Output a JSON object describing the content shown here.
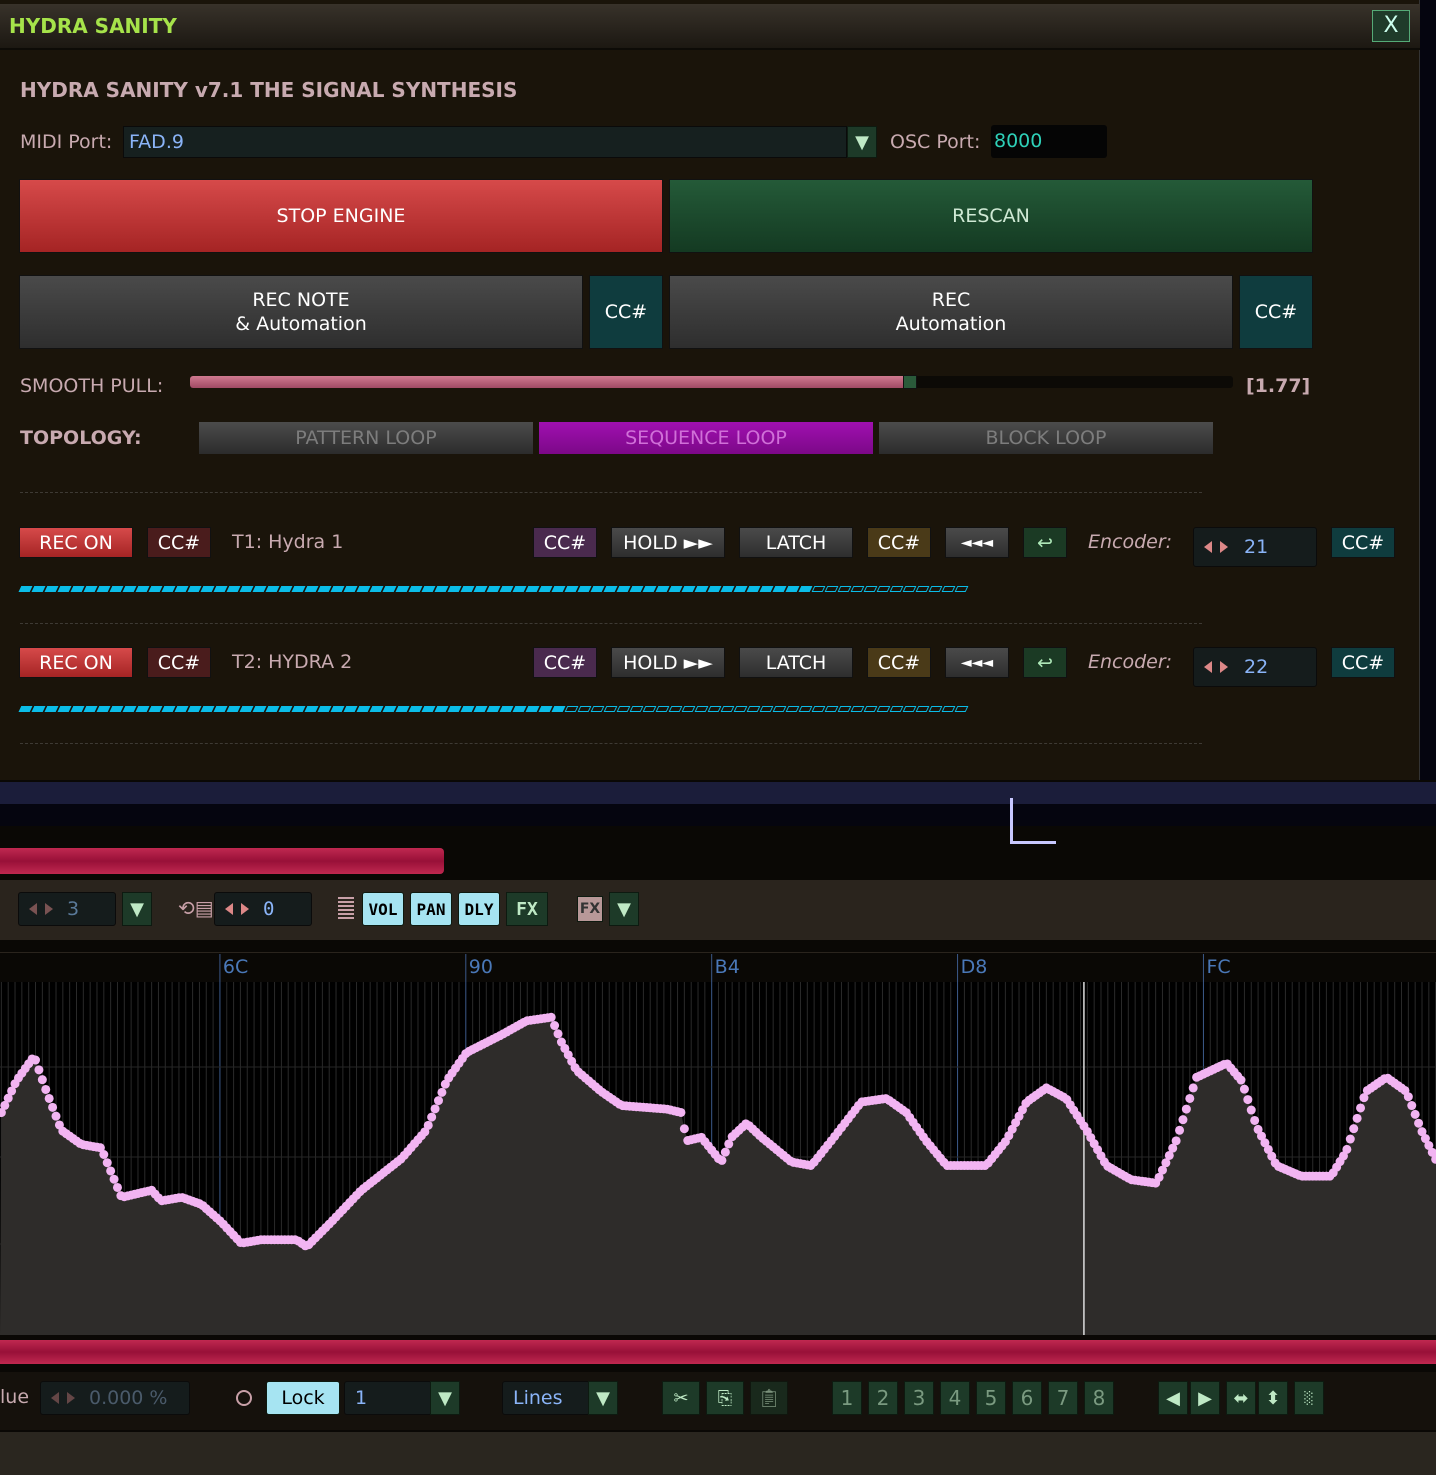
{
  "dialog": {
    "title": "HYDRA SANITY",
    "close_label": "X",
    "heading": "HYDRA SANITY v7.1 THE SIGNAL SYNTHESIS",
    "midi_port_label": "MIDI Port:",
    "midi_port_value": "FAD.9",
    "osc_port_label": "OSC Port:",
    "osc_port_value": "8000",
    "stop_engine": "STOP ENGINE",
    "rescan": "RESCAN",
    "rec_note_line1": "REC NOTE",
    "rec_note_line2": "& Automation",
    "rec_auto_line1": "REC",
    "rec_auto_line2": "Automation",
    "cc_label": "CC#",
    "smooth_pull_label": "SMOOTH PULL:",
    "smooth_pull_fraction": 0.69,
    "smooth_pull_value": "[1.77]",
    "topology_label": "TOPOLOGY:",
    "topology_options": [
      "PATTERN LOOP",
      "SEQUENCE LOOP",
      "BLOCK LOOP"
    ],
    "topology_selected": "SEQUENCE LOOP",
    "tracks": [
      {
        "rec": "REC ON",
        "cc": "CC#",
        "name": "T1: Hydra 1",
        "hold": "HOLD ►►",
        "latch": "LATCH",
        "rewind": "◄◄◄",
        "return": "↩",
        "encoder_label": "Encoder:",
        "encoder_value": "21",
        "progress": 0.83
      },
      {
        "rec": "REC ON",
        "cc": "CC#",
        "name": "T2: HYDRA 2",
        "hold": "HOLD ►►",
        "latch": "LATCH",
        "rewind": "◄◄◄",
        "return": "↩",
        "encoder_label": "Encoder:",
        "encoder_value": "22",
        "progress": 0.57
      }
    ]
  },
  "toolbar": {
    "lines_value": "3",
    "shift_value": "0",
    "vol": "VOL",
    "pan": "PAN",
    "dly": "DLY",
    "fx": "FX",
    "fx2": "FX"
  },
  "automation": {
    "ruler_labels": [
      {
        "label": "6C",
        "line": 108
      },
      {
        "label": "90",
        "line": 144
      },
      {
        "label": "B4",
        "line": 180
      },
      {
        "label": "D8",
        "line": 216
      },
      {
        "label": "FC",
        "line": 252
      }
    ],
    "point_color": "#f2b4f2",
    "playhead_line": 234.5,
    "points": [
      [
        76,
        0.63
      ],
      [
        78.2,
        0.72
      ],
      [
        80.8,
        0.79
      ],
      [
        82.6,
        0.69
      ],
      [
        84.8,
        0.58
      ],
      [
        87.7,
        0.54
      ],
      [
        90.6,
        0.53
      ],
      [
        92.1,
        0.46
      ],
      [
        93.6,
        0.39
      ],
      [
        98,
        0.41
      ],
      [
        99.4,
        0.38
      ],
      [
        102.4,
        0.39
      ],
      [
        105.3,
        0.37
      ],
      [
        108.2,
        0.32
      ],
      [
        111.1,
        0.26
      ],
      [
        114.1,
        0.27
      ],
      [
        119.2,
        0.27
      ],
      [
        120.7,
        0.25
      ],
      [
        124.3,
        0.32
      ],
      [
        128.7,
        0.41
      ],
      [
        134.6,
        0.5
      ],
      [
        138.2,
        0.58
      ],
      [
        141.2,
        0.72
      ],
      [
        144.1,
        0.8
      ],
      [
        149.2,
        0.85
      ],
      [
        152.9,
        0.89
      ],
      [
        156.5,
        0.9
      ],
      [
        158,
        0.83
      ],
      [
        160.2,
        0.75
      ],
      [
        163.8,
        0.69
      ],
      [
        166.8,
        0.65
      ],
      [
        173.4,
        0.64
      ],
      [
        175.6,
        0.63
      ],
      [
        176.3,
        0.55
      ],
      [
        178.5,
        0.56
      ],
      [
        181.4,
        0.49
      ],
      [
        182.9,
        0.56
      ],
      [
        185.1,
        0.6
      ],
      [
        187.3,
        0.56
      ],
      [
        191.7,
        0.49
      ],
      [
        194.6,
        0.48
      ],
      [
        197.5,
        0.55
      ],
      [
        201.9,
        0.66
      ],
      [
        205.6,
        0.67
      ],
      [
        208.5,
        0.63
      ],
      [
        211.4,
        0.55
      ],
      [
        214.4,
        0.48
      ],
      [
        220.2,
        0.48
      ],
      [
        223.1,
        0.55
      ],
      [
        226.1,
        0.66
      ],
      [
        229,
        0.7
      ],
      [
        231.9,
        0.67
      ],
      [
        234.9,
        0.58
      ],
      [
        237.8,
        0.48
      ],
      [
        241.4,
        0.44
      ],
      [
        245.1,
        0.43
      ],
      [
        248,
        0.55
      ],
      [
        251,
        0.73
      ],
      [
        255.4,
        0.77
      ],
      [
        257.6,
        0.72
      ],
      [
        259.8,
        0.59
      ],
      [
        262.7,
        0.48
      ],
      [
        266.3,
        0.45
      ],
      [
        270.7,
        0.45
      ],
      [
        272.9,
        0.52
      ],
      [
        275.8,
        0.69
      ],
      [
        278.8,
        0.73
      ],
      [
        281.7,
        0.69
      ],
      [
        283.9,
        0.58
      ],
      [
        286.2,
        0.49
      ]
    ]
  },
  "bottom": {
    "value_label": "lue",
    "value": "0.000 %",
    "lock": "Lock",
    "lock_value": "1",
    "mode": "Lines",
    "slots": [
      "1",
      "2",
      "3",
      "4",
      "5",
      "6",
      "7",
      "8"
    ]
  }
}
